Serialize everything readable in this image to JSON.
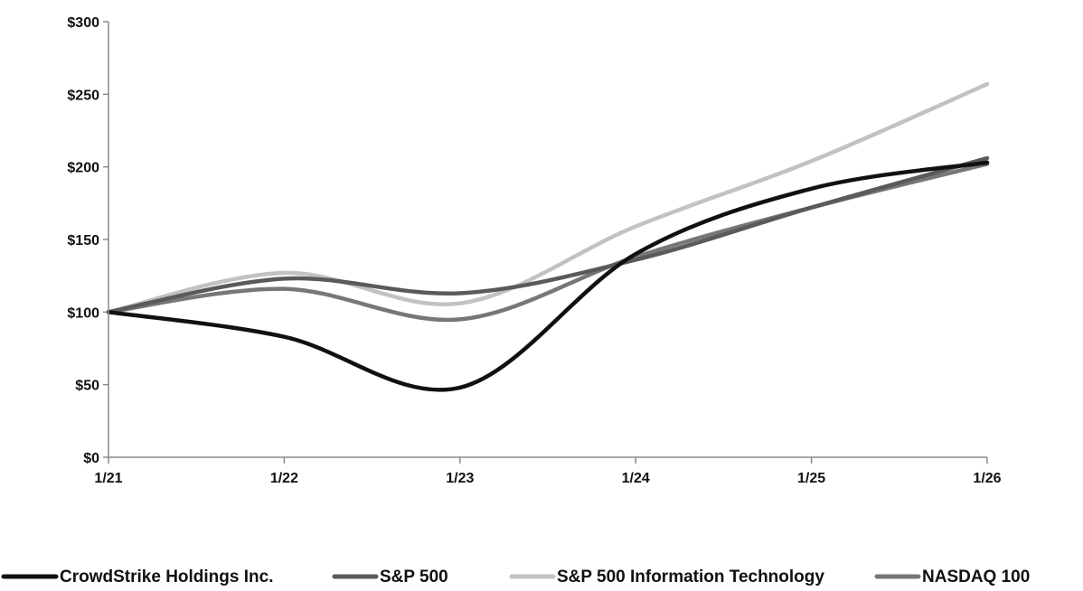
{
  "chart_data": {
    "type": "line",
    "title": "",
    "xlabel": "",
    "ylabel": "",
    "x": [
      "1/21",
      "1/22",
      "1/23",
      "1/24",
      "1/25",
      "1/26"
    ],
    "ylim": [
      0,
      300
    ],
    "yticks": [
      0,
      50,
      100,
      150,
      200,
      250,
      300
    ],
    "ytick_labels": [
      "$0",
      "$50",
      "$100",
      "$150",
      "$200",
      "$250",
      "$300"
    ],
    "grid": false,
    "legend_position": "bottom",
    "series": [
      {
        "name": "CrowdStrike Holdings Inc.",
        "color": "#111111",
        "values": [
          100,
          83,
          48,
          140,
          185,
          203
        ]
      },
      {
        "name": "S&P 500",
        "color": "#5a5a5a",
        "values": [
          100,
          123,
          113,
          136,
          172,
          206
        ]
      },
      {
        "name": "S&P 500 Information Technology",
        "color": "#c2c2c2",
        "values": [
          100,
          127,
          106,
          159,
          204,
          257
        ]
      },
      {
        "name": "NASDAQ 100",
        "color": "#777777",
        "values": [
          100,
          116,
          95,
          138,
          172,
          202
        ]
      }
    ]
  }
}
